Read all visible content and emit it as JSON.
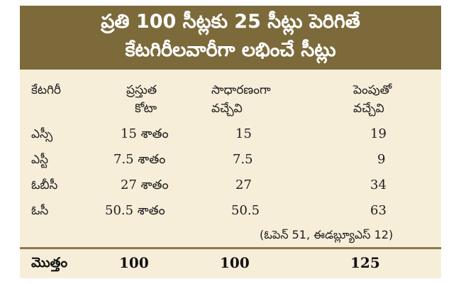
{
  "title": {
    "line1": "ప్రతి 100 సీట్లకు 25 సీట్లు పెరిగితే",
    "line2": "కేటగిరీలవారీగా లభించే సీట్లు"
  },
  "table": {
    "headers": {
      "category": "కేటగిరీ",
      "current_quota_line1": "ప్రస్తుత",
      "current_quota_line2": "కోటా",
      "normal_line1": "సాధారణంగా",
      "normal_line2": "వచ్చేవి",
      "increase_line1": "పెంపుతో",
      "increase_line2": "వచ్చేవి"
    },
    "rows": [
      {
        "category": "ఎస్సీ",
        "quota": "15 శాతం",
        "normal": "15",
        "increase": "19"
      },
      {
        "category": "ఎస్టీ",
        "quota": "7.5 శాతం",
        "normal": "7.5",
        "increase": "9"
      },
      {
        "category": "ఓబీసీ",
        "quota": "27 శాతం",
        "normal": "27",
        "increase": "34"
      },
      {
        "category": "ఓసీ",
        "quota": "50.5 శాతం",
        "normal": "50.5",
        "increase": "63"
      }
    ],
    "note": "(ఓపెన్ 51, ఈడబ్ల్యూఎస్ 12)",
    "total": {
      "label": "మొత్తం",
      "quota": "100",
      "normal": "100",
      "increase": "125"
    }
  },
  "colors": {
    "header_bg": "#7c6a3b",
    "body_bg": "#f6eed9",
    "title_text": "#ffffff"
  }
}
